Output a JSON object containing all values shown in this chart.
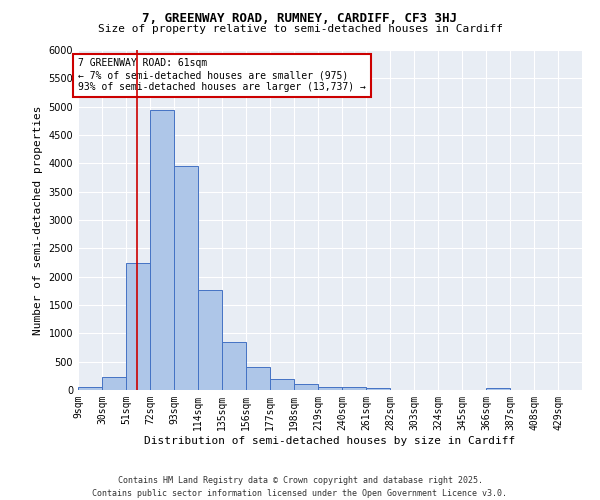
{
  "title_line1": "7, GREENWAY ROAD, RUMNEY, CARDIFF, CF3 3HJ",
  "title_line2": "Size of property relative to semi-detached houses in Cardiff",
  "xlabel": "Distribution of semi-detached houses by size in Cardiff",
  "ylabel": "Number of semi-detached properties",
  "bar_color": "#aec6e8",
  "bar_edge_color": "#4472c4",
  "background_color": "#e8edf4",
  "grid_color": "white",
  "bin_labels": [
    "9sqm",
    "30sqm",
    "51sqm",
    "72sqm",
    "93sqm",
    "114sqm",
    "135sqm",
    "156sqm",
    "177sqm",
    "198sqm",
    "219sqm",
    "240sqm",
    "261sqm",
    "282sqm",
    "303sqm",
    "324sqm",
    "345sqm",
    "366sqm",
    "387sqm",
    "408sqm",
    "429sqm"
  ],
  "bin_edges": [
    9,
    30,
    51,
    72,
    93,
    114,
    135,
    156,
    177,
    198,
    219,
    240,
    261,
    282,
    303,
    324,
    345,
    366,
    387,
    408,
    429,
    450
  ],
  "bar_heights": [
    50,
    230,
    2250,
    4950,
    3950,
    1760,
    840,
    400,
    195,
    110,
    60,
    55,
    30,
    0,
    0,
    0,
    0,
    30,
    0,
    0,
    0
  ],
  "ylim": [
    0,
    6000
  ],
  "yticks": [
    0,
    500,
    1000,
    1500,
    2000,
    2500,
    3000,
    3500,
    4000,
    4500,
    5000,
    5500,
    6000
  ],
  "property_size": 61,
  "red_line_color": "#cc0000",
  "annotation_text": "7 GREENWAY ROAD: 61sqm\n← 7% of semi-detached houses are smaller (975)\n93% of semi-detached houses are larger (13,737) →",
  "annotation_box_color": "white",
  "annotation_box_edge_color": "#cc0000",
  "footer_line1": "Contains HM Land Registry data © Crown copyright and database right 2025.",
  "footer_line2": "Contains public sector information licensed under the Open Government Licence v3.0.",
  "title_fontsize": 9,
  "subtitle_fontsize": 8,
  "axis_label_fontsize": 8,
  "tick_fontsize": 7,
  "annotation_fontsize": 7,
  "footer_fontsize": 6
}
